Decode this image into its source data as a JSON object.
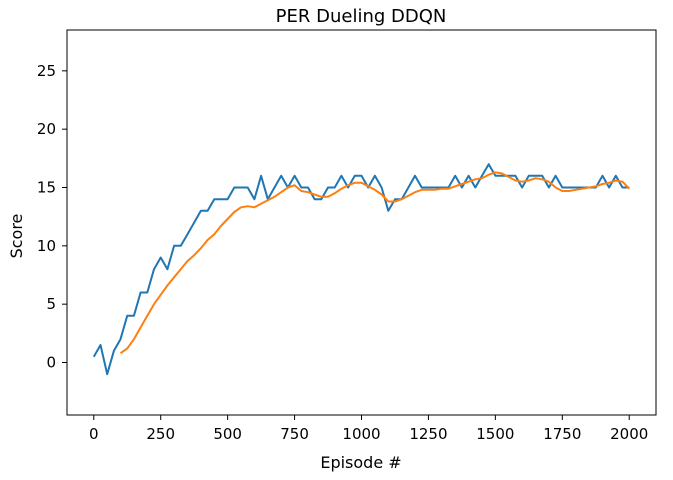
{
  "chart_data": {
    "type": "line",
    "title": "PER Dueling DDQN",
    "xlabel": "Episode #",
    "ylabel": "Score",
    "xlim": [
      -100,
      2100
    ],
    "ylim": [
      -4.5,
      28.5
    ],
    "xticks": [
      0,
      250,
      500,
      750,
      1000,
      1250,
      1500,
      1750,
      2000
    ],
    "yticks": [
      0,
      5,
      10,
      15,
      20,
      25
    ],
    "grid": false,
    "legend": "none",
    "colors": {
      "raw": "#1f77b4",
      "avg": "#ff7f0e"
    },
    "series": [
      {
        "values_description_note": "",
        "x": [
          0,
          25,
          50,
          75,
          100,
          125,
          150,
          175,
          200,
          225,
          250,
          275,
          300,
          325,
          350,
          375,
          400,
          425,
          450,
          475,
          500,
          525,
          550,
          575,
          600,
          625,
          650,
          675,
          700,
          725,
          750,
          775,
          800,
          825,
          850,
          875,
          900,
          925,
          950,
          975,
          1000,
          1025,
          1050,
          1075,
          1100,
          1125,
          1150,
          1175,
          1200,
          1225,
          1250,
          1275,
          1300,
          1325,
          1350,
          1375,
          1400,
          1425,
          1450,
          1475,
          1500,
          1525,
          1550,
          1575,
          1600,
          1625,
          1650,
          1675,
          1700,
          1725,
          1750,
          1775,
          1800,
          1825,
          1850,
          1875,
          1900,
          1925,
          1950,
          1975,
          2000
        ],
        "y": [
          0.5,
          1.5,
          -1,
          1,
          2,
          4,
          4,
          6,
          6,
          8,
          9,
          8,
          10,
          10,
          11,
          12,
          13,
          13,
          14,
          14,
          14,
          15,
          15,
          15,
          14,
          16,
          14,
          15,
          16,
          15,
          16,
          15,
          15,
          14,
          14,
          15,
          15,
          16,
          15,
          16,
          16,
          15,
          16,
          15,
          13,
          14,
          14,
          15,
          16,
          15,
          15,
          15,
          15,
          15,
          16,
          15,
          16,
          15,
          16,
          17,
          16,
          16,
          16,
          16,
          15,
          16,
          16,
          16,
          15,
          16,
          15,
          15,
          15,
          15,
          15,
          15,
          16,
          15,
          16,
          15,
          15
        ]
      },
      {
        "x": [
          100,
          125,
          150,
          175,
          200,
          225,
          250,
          275,
          300,
          325,
          350,
          375,
          400,
          425,
          450,
          475,
          500,
          525,
          550,
          575,
          600,
          625,
          650,
          675,
          700,
          725,
          750,
          775,
          800,
          825,
          850,
          875,
          900,
          925,
          950,
          975,
          1000,
          1025,
          1050,
          1075,
          1100,
          1125,
          1150,
          1175,
          1200,
          1225,
          1250,
          1275,
          1300,
          1325,
          1350,
          1375,
          1400,
          1425,
          1450,
          1475,
          1500,
          1525,
          1550,
          1575,
          1600,
          1625,
          1650,
          1675,
          1700,
          1725,
          1750,
          1775,
          1800,
          1825,
          1850,
          1875,
          1900,
          1925,
          1950,
          1975,
          2000
        ],
        "y": [
          0.8,
          1.2,
          2.0,
          3.0,
          4.0,
          5.0,
          5.8,
          6.6,
          7.3,
          8.0,
          8.7,
          9.2,
          9.8,
          10.5,
          11.0,
          11.7,
          12.3,
          12.9,
          13.3,
          13.4,
          13.3,
          13.6,
          13.9,
          14.2,
          14.6,
          15.0,
          15.2,
          14.7,
          14.6,
          14.4,
          14.2,
          14.2,
          14.5,
          14.9,
          15.2,
          15.4,
          15.4,
          15.1,
          14.8,
          14.4,
          13.8,
          13.8,
          14.0,
          14.3,
          14.6,
          14.8,
          14.8,
          14.8,
          14.9,
          14.9,
          15.1,
          15.3,
          15.5,
          15.7,
          15.8,
          16.1,
          16.3,
          16.2,
          15.9,
          15.6,
          15.5,
          15.6,
          15.8,
          15.7,
          15.5,
          15.0,
          14.7,
          14.7,
          14.8,
          14.9,
          15.0,
          15.1,
          15.3,
          15.4,
          15.6,
          15.5,
          14.9
        ]
      }
    ]
  }
}
